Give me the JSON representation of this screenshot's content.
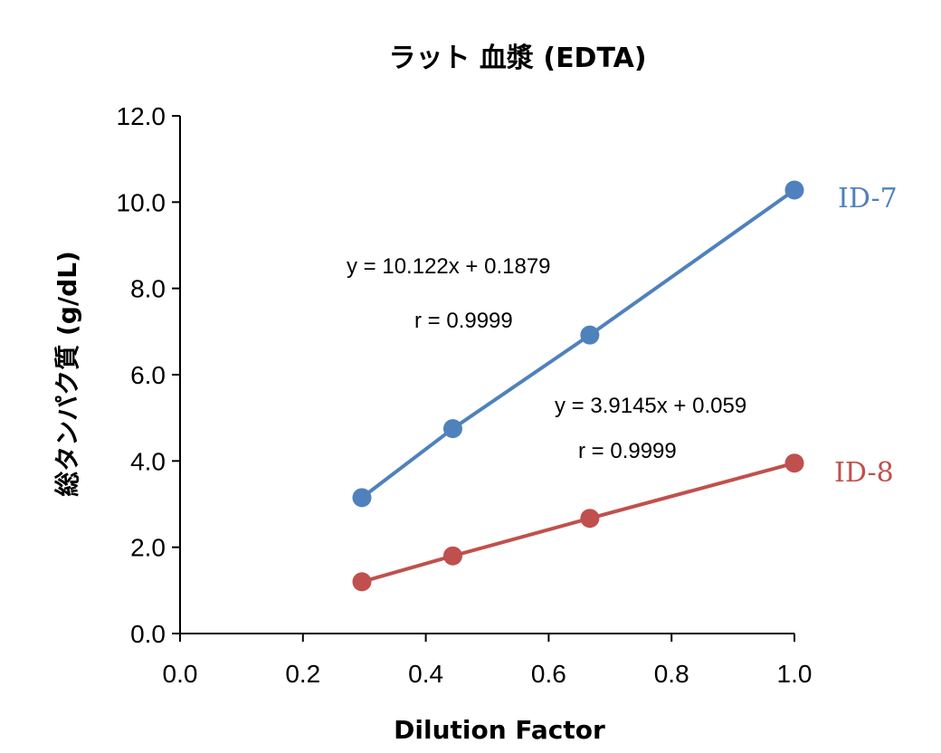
{
  "chart_data": {
    "type": "line",
    "title": "ラット 血漿 (EDTA)",
    "xlabel": "Dilution Factor",
    "ylabel": "総タンパク質 (g/dL)",
    "xlim": [
      0,
      1
    ],
    "ylim": [
      0,
      12
    ],
    "x_ticks": [
      "0.0",
      "0.2",
      "0.4",
      "0.6",
      "0.8",
      "1.0"
    ],
    "y_ticks": [
      "0.0",
      "2.0",
      "4.0",
      "6.0",
      "8.0",
      "10.0",
      "12.0"
    ],
    "grid": false,
    "series": [
      {
        "name": "ID-7",
        "color": "#4f81bd",
        "x": [
          0.296,
          0.444,
          0.667,
          1.0
        ],
        "y": [
          3.15,
          4.75,
          6.92,
          10.28
        ],
        "equation": "y = 10.122x + 0.1879",
        "r": "r = 0.9999"
      },
      {
        "name": "ID-8",
        "color": "#c0504d",
        "x": [
          0.296,
          0.444,
          0.667,
          1.0
        ],
        "y": [
          1.2,
          1.8,
          2.67,
          3.95
        ],
        "equation": "y = 3.9145x + 0.059",
        "r": "r = 0.9999"
      }
    ]
  }
}
